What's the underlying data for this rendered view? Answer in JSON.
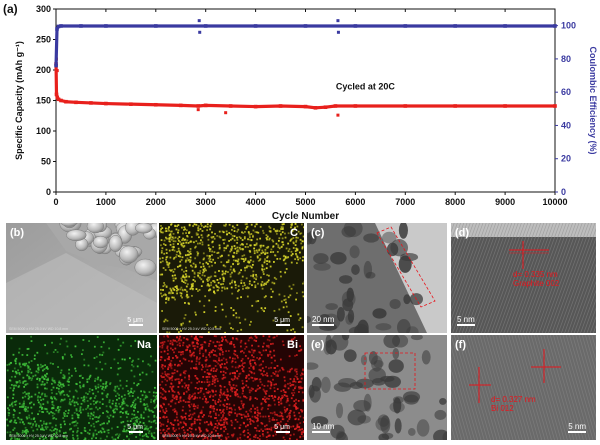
{
  "panel_a_label": "(a)",
  "chart_data": {
    "type": "scatter",
    "title": "",
    "xlabel": "Cycle Number",
    "ylabel": "Specific Capacity (mAh g⁻¹)",
    "y2label": "Coulombic Efficiency (%)",
    "xlim": [
      0,
      10000
    ],
    "ylim": [
      0,
      300
    ],
    "y2lim": [
      0,
      110
    ],
    "x_ticks": [
      0,
      1000,
      2000,
      3000,
      4000,
      5000,
      6000,
      7000,
      8000,
      9000,
      10000
    ],
    "y_ticks": [
      0,
      50,
      100,
      150,
      200,
      250,
      300
    ],
    "y2_ticks": [
      0,
      20,
      40,
      60,
      80,
      100
    ],
    "annotation": "Cycled at 20C",
    "grid": false,
    "series": [
      {
        "color": "#e8201c",
        "axis": "left",
        "x": [
          1,
          10,
          25,
          50,
          100,
          200,
          400,
          700,
          1000,
          1500,
          2000,
          2500,
          2850,
          3000,
          3500,
          4000,
          4500,
          5000,
          5200,
          5400,
          5600,
          6000,
          7000,
          8000,
          9000,
          10000
        ],
        "y": [
          210,
          160,
          155,
          152,
          150,
          148,
          147,
          146,
          145,
          144,
          143,
          142,
          141,
          142,
          141,
          140,
          141,
          140,
          138,
          139,
          141,
          141,
          141,
          141,
          141,
          141
        ],
        "outliers": [
          [
            10,
            218
          ],
          [
            25,
            199
          ],
          [
            2850,
            135
          ],
          [
            3400,
            130
          ],
          [
            5650,
            126
          ]
        ]
      },
      {
        "color": "#3a3aa0",
        "axis": "right",
        "x": [
          1,
          20,
          50,
          100,
          500,
          1000,
          2000,
          3000,
          4000,
          5000,
          6000,
          7000,
          8000,
          9000,
          10000
        ],
        "y": [
          76,
          98,
          99.5,
          99.8,
          99.8,
          99.8,
          99.8,
          99.8,
          99.8,
          99.8,
          99.8,
          99.8,
          99.8,
          99.8,
          99.8
        ],
        "outliers": [
          [
            5,
            76
          ],
          [
            2870,
            103
          ],
          [
            2880,
            96
          ],
          [
            5650,
            103
          ],
          [
            5660,
            96
          ]
        ]
      }
    ]
  },
  "panel_b": {
    "label": "(b)",
    "meta": "SEM  5000 x  HV  25.0 kV  WD  10.8 mm",
    "scale": "5 μm"
  },
  "panel_c_el": {
    "element": "C",
    "meta": "SEM  5000 x  HV  25.0 kV  WD  10.8 mm",
    "scale": "5 μm"
  },
  "panel_na": {
    "element": "Na",
    "meta": "SEM  5000 x  HV  25.0 kV  WD  10.8 mm",
    "scale": "5 μm"
  },
  "panel_bi": {
    "element": "Bi",
    "meta": "SEM  5000 x  HV  25.0 kV  WD  10.8 mm",
    "scale": "5 μm"
  },
  "panel_c": {
    "label": "(c)",
    "scale": "20 nm"
  },
  "panel_d": {
    "label": "(d)",
    "scale": "5 nm",
    "ann_line1": "d= 0.335 nm",
    "ann_line2": "Graphite 002"
  },
  "panel_e": {
    "label": "(e)",
    "scale": "10 nm"
  },
  "panel_f": {
    "label": "(f)",
    "scale": "5 nm",
    "ann_line1": "d= 0.327 nm",
    "ann_line2": "Bi 012"
  }
}
